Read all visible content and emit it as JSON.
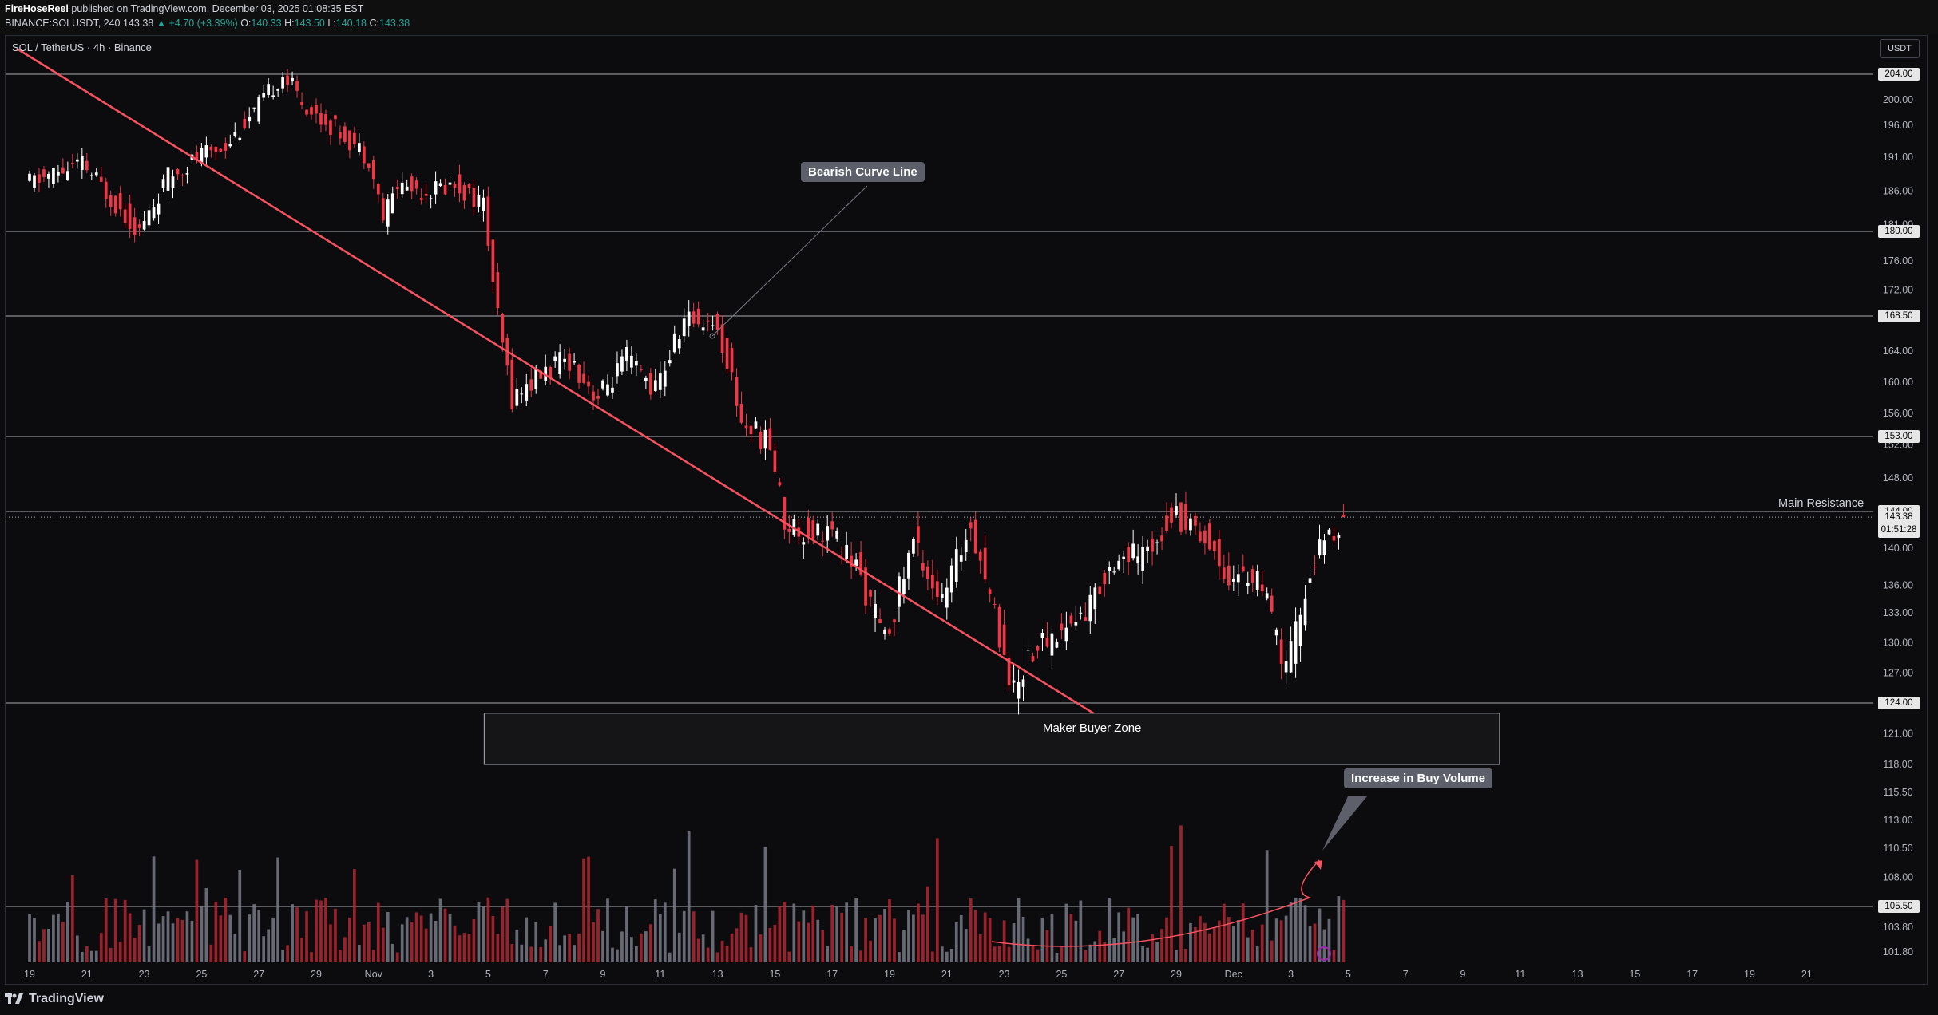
{
  "header": {
    "author": "FireHoseReel",
    "published_text": "published on TradingView.com, December 03, 2025 01:08:35 EST",
    "ticker": "BINANCE:SOLUSDT, 240",
    "last": "143.38",
    "change": "▲ +4.70 (+3.39%)",
    "open_label": "O:",
    "open": "140.33",
    "high_label": "H:",
    "high": "143.50",
    "low_label": "L:",
    "low": "140.18",
    "close_label": "C:",
    "close": "143.38"
  },
  "symbol_title": "SOL / TetherUS · 4h · Binance",
  "currency_button": "USDT",
  "footer": {
    "logo_text": "TradingView"
  },
  "annotations": {
    "bearish_curve_line": "Bearish Curve Line",
    "maker_buyer_zone": "Maker Buyer Zone",
    "main_resistance": "Main Resistance",
    "increase_in_buy_volume": "Increase in Buy Volume"
  },
  "last_price_tag": {
    "price": "143.38",
    "countdown": "01:51:28"
  },
  "colors": {
    "up": "#ffffff",
    "down": "#f23645",
    "trendline": "#f7525f",
    "level_line": "#d1d4dc",
    "volume_up": "#787b86",
    "volume_down": "#b22833",
    "background": "#0c0c0e"
  },
  "chart_data": {
    "type": "candlestick",
    "symbol": "SOLUSDT",
    "exchange": "BINANCE",
    "interval": "4h",
    "y_axis_ticks": [
      "101.80",
      "103.80",
      "105.50",
      "108.00",
      "110.50",
      "113.00",
      "115.50",
      "118.00",
      "121.00",
      "124.00",
      "127.00",
      "130.00",
      "133.00",
      "136.00",
      "140.00",
      "144.00",
      "148.00",
      "152.00",
      "153.00",
      "156.00",
      "160.00",
      "164.00",
      "168.50",
      "172.00",
      "176.00",
      "180.00",
      "181.00",
      "186.00",
      "191.00",
      "196.00",
      "200.00",
      "204.00"
    ],
    "x_axis_ticks": [
      "19",
      "21",
      "23",
      "25",
      "27",
      "29",
      "Nov",
      "3",
      "5",
      "7",
      "9",
      "11",
      "13",
      "15",
      "17",
      "19",
      "21",
      "23",
      "25",
      "27",
      "29",
      "Dec",
      "3",
      "5",
      "7",
      "9",
      "11",
      "13",
      "15",
      "17",
      "19",
      "21"
    ],
    "horizontal_levels": [
      "204.00",
      "180.00",
      "168.50",
      "153.00",
      "144.00",
      "124.00",
      "105.50"
    ],
    "price_key_points": [
      {
        "date": "Oct 18",
        "price": 187
      },
      {
        "date": "Oct 20",
        "price": 190
      },
      {
        "date": "Oct 21",
        "price": 185
      },
      {
        "date": "Oct 22",
        "price": 180
      },
      {
        "date": "Oct 23",
        "price": 188
      },
      {
        "date": "Oct 24",
        "price": 191
      },
      {
        "date": "Oct 25",
        "price": 193
      },
      {
        "date": "Oct 26",
        "price": 198
      },
      {
        "date": "Oct 27",
        "price": 204
      },
      {
        "date": "Oct 28",
        "price": 198
      },
      {
        "date": "Oct 29",
        "price": 195
      },
      {
        "date": "Oct 30",
        "price": 191
      },
      {
        "date": "Oct 30",
        "price": 182
      },
      {
        "date": "Oct 31",
        "price": 187
      },
      {
        "date": "Nov 1",
        "price": 186
      },
      {
        "date": "Nov 2",
        "price": 187
      },
      {
        "date": "Nov 3",
        "price": 184
      },
      {
        "date": "Nov 3",
        "price": 168
      },
      {
        "date": "Nov 4",
        "price": 158
      },
      {
        "date": "Nov 5",
        "price": 161
      },
      {
        "date": "Nov 6",
        "price": 163
      },
      {
        "date": "Nov 7",
        "price": 158
      },
      {
        "date": "Nov 8",
        "price": 163
      },
      {
        "date": "Nov 9",
        "price": 159
      },
      {
        "date": "Nov 10",
        "price": 168
      },
      {
        "date": "Nov 11",
        "price": 168
      },
      {
        "date": "Nov 11",
        "price": 163
      },
      {
        "date": "Nov 12",
        "price": 155
      },
      {
        "date": "Nov 13",
        "price": 152
      },
      {
        "date": "Nov 13",
        "price": 143
      },
      {
        "date": "Nov 14",
        "price": 142
      },
      {
        "date": "Nov 15",
        "price": 142
      },
      {
        "date": "Nov 16",
        "price": 138
      },
      {
        "date": "Nov 17",
        "price": 130
      },
      {
        "date": "Nov 18",
        "price": 141
      },
      {
        "date": "Nov 19",
        "price": 134
      },
      {
        "date": "Nov 20",
        "price": 143
      },
      {
        "date": "Nov 21",
        "price": 131
      },
      {
        "date": "Nov 21",
        "price": 125
      },
      {
        "date": "Nov 22",
        "price": 129
      },
      {
        "date": "Nov 23",
        "price": 131
      },
      {
        "date": "Nov 24",
        "price": 133
      },
      {
        "date": "Nov 25",
        "price": 139
      },
      {
        "date": "Nov 26",
        "price": 139
      },
      {
        "date": "Nov 27",
        "price": 144
      },
      {
        "date": "Nov 28",
        "price": 142
      },
      {
        "date": "Nov 29",
        "price": 137
      },
      {
        "date": "Nov 30",
        "price": 137
      },
      {
        "date": "Dec 1",
        "price": 127
      },
      {
        "date": "Dec 2",
        "price": 139
      },
      {
        "date": "Dec 3",
        "price": 143.38
      }
    ],
    "trendline": {
      "start": {
        "date": "Oct 18",
        "price": 208
      },
      "end": {
        "date": "Nov 24",
        "price": 123
      }
    },
    "buyer_zone": {
      "top": 123,
      "bottom": 118,
      "from": "Nov 4",
      "to": "Dec 9"
    }
  }
}
